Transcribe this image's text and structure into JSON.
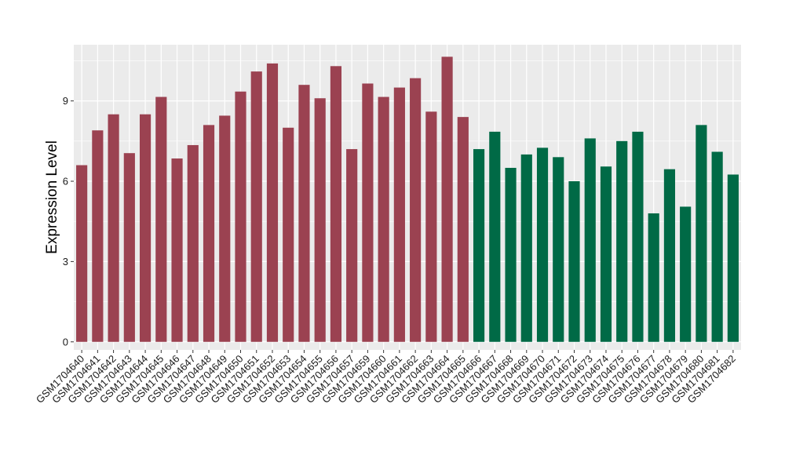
{
  "chart_data": {
    "type": "bar",
    "title": "",
    "xlabel": "",
    "ylabel": "Expression Level",
    "ylim": [
      -0.3,
      11.1
    ],
    "yticks": [
      0,
      3,
      6,
      9
    ],
    "grid": true,
    "legend": "none",
    "background": "#ebebeb",
    "categories": [
      "GSM1704640",
      "GSM1704641",
      "GSM1704642",
      "GSM1704643",
      "GSM1704644",
      "GSM1704645",
      "GSM1704646",
      "GSM1704647",
      "GSM1704648",
      "GSM1704649",
      "GSM1704650",
      "GSM1704651",
      "GSM1704652",
      "GSM1704653",
      "GSM1704654",
      "GSM1704655",
      "GSM1704656",
      "GSM1704657",
      "GSM1704659",
      "GSM1704660",
      "GSM1704661",
      "GSM1704662",
      "GSM1704663",
      "GSM1704664",
      "GSM1704665",
      "GSM1704666",
      "GSM1704667",
      "GSM1704668",
      "GSM1704669",
      "GSM1704670",
      "GSM1704671",
      "GSM1704672",
      "GSM1704673",
      "GSM1704674",
      "GSM1704675",
      "GSM1704676",
      "GSM1704677",
      "GSM1704678",
      "GSM1704679",
      "GSM1704680",
      "GSM1704681",
      "GSM1704682"
    ],
    "values": [
      6.6,
      7.9,
      8.5,
      7.05,
      8.5,
      9.15,
      6.85,
      7.35,
      8.1,
      8.45,
      9.35,
      10.1,
      10.4,
      8.0,
      9.6,
      9.1,
      10.3,
      7.2,
      9.65,
      9.15,
      9.5,
      9.85,
      8.6,
      10.65,
      8.4,
      7.2,
      7.85,
      6.5,
      7.0,
      7.25,
      6.9,
      6.0,
      7.6,
      6.55,
      7.5,
      7.85,
      4.8,
      6.45,
      5.05,
      8.1,
      7.1,
      6.25
    ],
    "groups": [
      {
        "color": "#9b4251",
        "count": 25
      },
      {
        "color": "#006a46",
        "count": 17
      }
    ]
  }
}
